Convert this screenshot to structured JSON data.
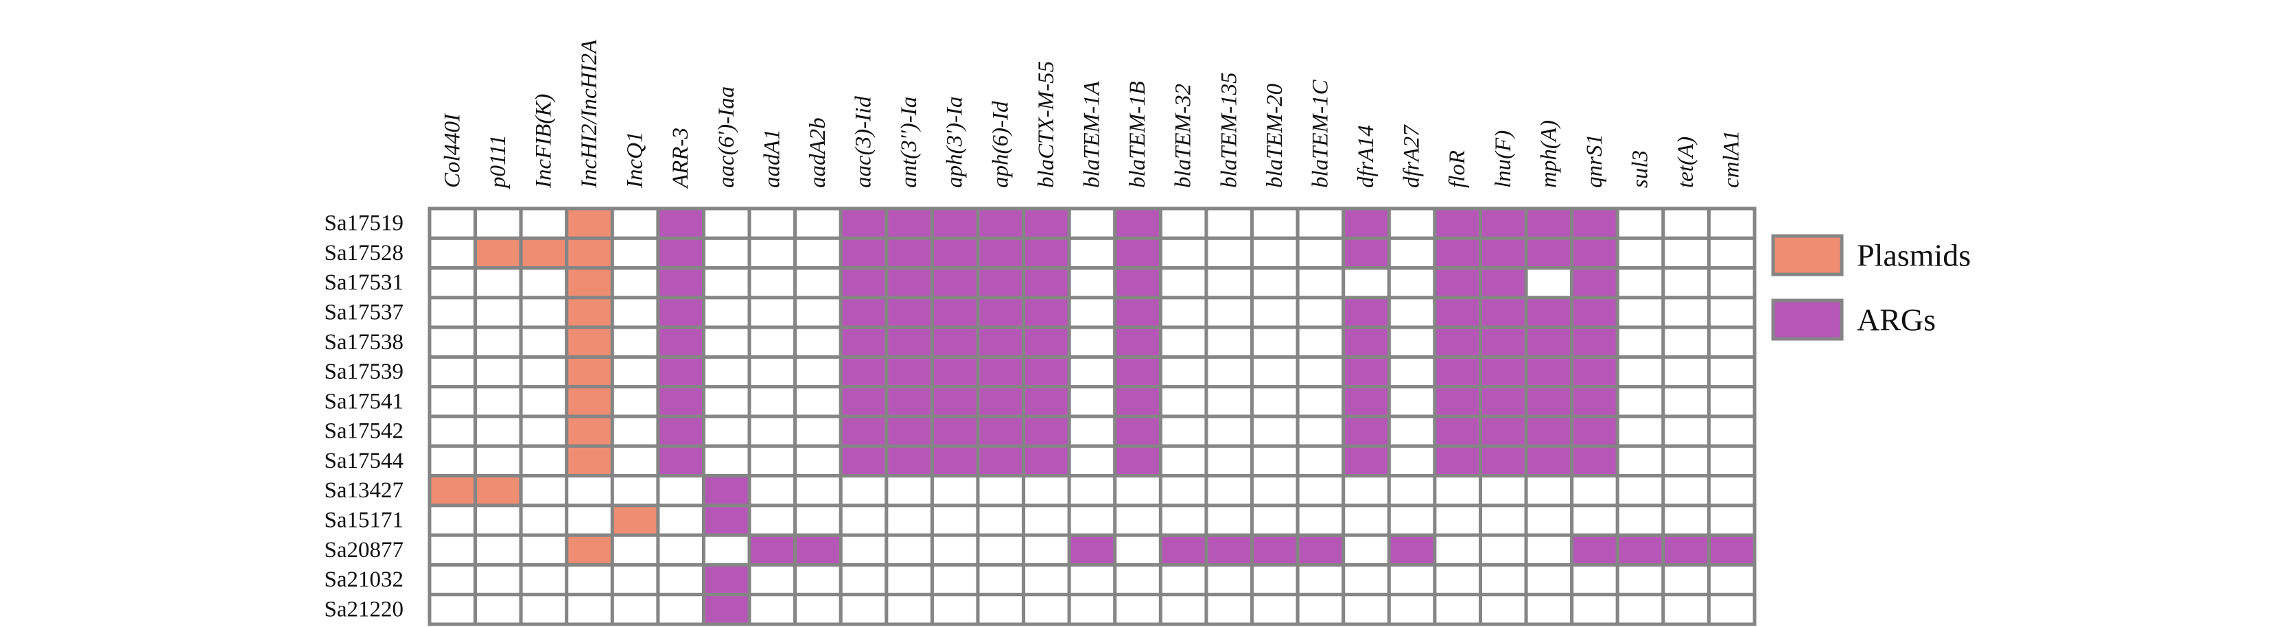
{
  "chart_data": {
    "type": "heatmap",
    "columns": [
      "Col440I",
      "p0111",
      "IncFIB(K)",
      "IncHI2/IncHI2A",
      "IncQ1",
      "ARR-3",
      "aac(6')-Iaa",
      "aadA1",
      "aadA2b",
      "aac(3)-Iid",
      "ant(3'')-Ia",
      "aph(3')-Ia",
      "aph(6)-Id",
      "blaCTX-M-55",
      "blaTEM-1A",
      "blaTEM-1B",
      "blaTEM-32",
      "blaTEM-135",
      "blaTEM-20",
      "blaTEM-1C",
      "dfrA14",
      "dfrA27",
      "floR",
      "lnu(F)",
      "mph(A)",
      "qnrS1",
      "sul3",
      "tet(A)",
      "cmlA1"
    ],
    "rows": [
      "Sa17519",
      "Sa17528",
      "Sa17531",
      "Sa17537",
      "Sa17538",
      "Sa17539",
      "Sa17541",
      "Sa17542",
      "Sa17544",
      "Sa13427",
      "Sa15171",
      "Sa20877",
      "Sa21032",
      "Sa21220"
    ],
    "matrix": [
      [
        0,
        0,
        0,
        1,
        0,
        2,
        0,
        0,
        0,
        2,
        2,
        2,
        2,
        2,
        0,
        2,
        0,
        0,
        0,
        0,
        2,
        0,
        2,
        2,
        2,
        2,
        0,
        0,
        0
      ],
      [
        0,
        1,
        1,
        1,
        0,
        2,
        0,
        0,
        0,
        2,
        2,
        2,
        2,
        2,
        0,
        2,
        0,
        0,
        0,
        0,
        2,
        0,
        2,
        2,
        2,
        2,
        0,
        0,
        0
      ],
      [
        0,
        0,
        0,
        1,
        0,
        2,
        0,
        0,
        0,
        2,
        2,
        2,
        2,
        2,
        0,
        2,
        0,
        0,
        0,
        0,
        0,
        0,
        2,
        2,
        0,
        2,
        0,
        0,
        0
      ],
      [
        0,
        0,
        0,
        1,
        0,
        2,
        0,
        0,
        0,
        2,
        2,
        2,
        2,
        2,
        0,
        2,
        0,
        0,
        0,
        0,
        2,
        0,
        2,
        2,
        2,
        2,
        0,
        0,
        0
      ],
      [
        0,
        0,
        0,
        1,
        0,
        2,
        0,
        0,
        0,
        2,
        2,
        2,
        2,
        2,
        0,
        2,
        0,
        0,
        0,
        0,
        2,
        0,
        2,
        2,
        2,
        2,
        0,
        0,
        0
      ],
      [
        0,
        0,
        0,
        1,
        0,
        2,
        0,
        0,
        0,
        2,
        2,
        2,
        2,
        2,
        0,
        2,
        0,
        0,
        0,
        0,
        2,
        0,
        2,
        2,
        2,
        2,
        0,
        0,
        0
      ],
      [
        0,
        0,
        0,
        1,
        0,
        2,
        0,
        0,
        0,
        2,
        2,
        2,
        2,
        2,
        0,
        2,
        0,
        0,
        0,
        0,
        2,
        0,
        2,
        2,
        2,
        2,
        0,
        0,
        0
      ],
      [
        0,
        0,
        0,
        1,
        0,
        2,
        0,
        0,
        0,
        2,
        2,
        2,
        2,
        2,
        0,
        2,
        0,
        0,
        0,
        0,
        2,
        0,
        2,
        2,
        2,
        2,
        0,
        0,
        0
      ],
      [
        0,
        0,
        0,
        1,
        0,
        2,
        0,
        0,
        0,
        2,
        2,
        2,
        2,
        2,
        0,
        2,
        0,
        0,
        0,
        0,
        2,
        0,
        2,
        2,
        2,
        2,
        0,
        0,
        0
      ],
      [
        1,
        1,
        0,
        0,
        0,
        0,
        2,
        0,
        0,
        0,
        0,
        0,
        0,
        0,
        0,
        0,
        0,
        0,
        0,
        0,
        0,
        0,
        0,
        0,
        0,
        0,
        0,
        0,
        0
      ],
      [
        0,
        0,
        0,
        0,
        1,
        0,
        2,
        0,
        0,
        0,
        0,
        0,
        0,
        0,
        0,
        0,
        0,
        0,
        0,
        0,
        0,
        0,
        0,
        0,
        0,
        0,
        0,
        0,
        0
      ],
      [
        0,
        0,
        0,
        1,
        0,
        0,
        0,
        2,
        2,
        0,
        0,
        0,
        0,
        0,
        2,
        0,
        2,
        2,
        2,
        2,
        0,
        2,
        0,
        0,
        0,
        2,
        2,
        2,
        2
      ],
      [
        0,
        0,
        0,
        0,
        0,
        0,
        2,
        0,
        0,
        0,
        0,
        0,
        0,
        0,
        0,
        0,
        0,
        0,
        0,
        0,
        0,
        0,
        0,
        0,
        0,
        0,
        0,
        0,
        0
      ],
      [
        0,
        0,
        0,
        0,
        0,
        0,
        2,
        0,
        0,
        0,
        0,
        0,
        0,
        0,
        0,
        0,
        0,
        0,
        0,
        0,
        0,
        0,
        0,
        0,
        0,
        0,
        0,
        0,
        0
      ]
    ],
    "legend": [
      {
        "label": "Plasmids",
        "value": 1
      },
      {
        "label": "ARGs",
        "value": 2
      }
    ],
    "legend_position": "right",
    "colors": {
      "empty": "#ffffff",
      "plasmid": "#ee8d72",
      "arg": "#b657b8",
      "grid": "#858585"
    }
  }
}
